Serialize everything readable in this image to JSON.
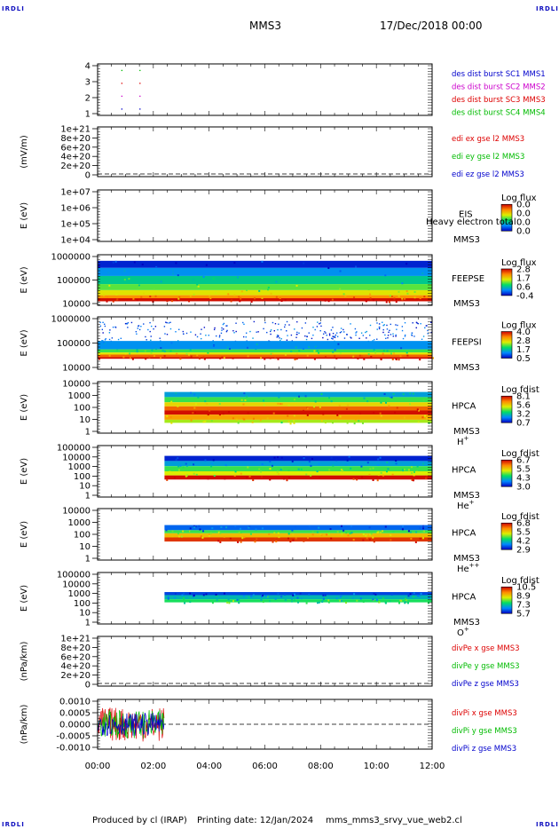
{
  "header": {
    "title": "MMS3",
    "date": "17/Dec/2018 00:00",
    "corner_logo": "IRDLI"
  },
  "footer": {
    "credit": "Produced by cl (IRAP)",
    "printing_date": "Printing date: 12/Jan/2024",
    "filename": "mms_mms3_srvy_vue_web2.cl"
  },
  "colors": {
    "mms1": "#0000cc",
    "mms2": "#cc00cc",
    "mms3": "#dd0000",
    "mms4": "#00bb00",
    "irap_blue": "#1010c0"
  },
  "chart_data": {
    "type": "multi-panel",
    "x": {
      "ticks": [
        "00:00",
        "02:00",
        "04:00",
        "06:00",
        "08:00",
        "10:00",
        "12:00"
      ],
      "range_hours": [
        0,
        12
      ]
    },
    "panels": [
      {
        "id": "burst",
        "type": "scatter",
        "ylabel": "",
        "yticks": [
          "4",
          "3",
          "2",
          "1"
        ],
        "ylim": [
          0.5,
          4.5
        ],
        "series": [
          {
            "name": "des dist burst SC1 MMS1",
            "color": "#0000cc",
            "y": 1
          },
          {
            "name": "des dist burst SC2 MMS2",
            "color": "#cc00cc",
            "y": 2
          },
          {
            "name": "des dist burst SC3 MMS3",
            "color": "#dd0000",
            "y": 3
          },
          {
            "name": "des dist burst SC4 MMS4",
            "color": "#00bb00",
            "y": 4
          }
        ],
        "points": [
          [
            0.85,
            1
          ],
          [
            0.85,
            2
          ],
          [
            0.85,
            3
          ],
          [
            0.85,
            4
          ],
          [
            1.5,
            1
          ],
          [
            1.5,
            2
          ],
          [
            1.5,
            3
          ],
          [
            1.5,
            4
          ]
        ]
      },
      {
        "id": "edi",
        "type": "line",
        "ylabel": "(mV/m)",
        "yticks": [
          "1e+21",
          "8e+20",
          "6e+20",
          "4e+20",
          "2e+20",
          "0"
        ],
        "ylim": [
          0,
          1e+21
        ],
        "series": [
          {
            "name": "edi ex gse l2 MMS3",
            "color": "#dd0000"
          },
          {
            "name": "edi ey gse l2 MMS3",
            "color": "#00bb00"
          },
          {
            "name": "edi ez gse l2 MMS3",
            "color": "#0000cc"
          }
        ],
        "zero_line": true
      },
      {
        "id": "eis",
        "type": "heatmap",
        "ylabel": "E (eV)",
        "yticks": [
          "1e+07",
          "1e+06",
          "1e+05",
          "1e+04"
        ],
        "ylim": [
          10000,
          10000000
        ],
        "log_y": true,
        "instrument": [
          "EIS",
          "MMS3"
        ],
        "overlay_text": "Heavy electron total",
        "colorbar": {
          "label": "Log flux",
          "ticks": [
            "0.0",
            "0.0",
            "0.0",
            "0.0"
          ]
        },
        "data_start": null
      },
      {
        "id": "feepse",
        "type": "heatmap",
        "ylabel": "E (eV)",
        "yticks": [
          "1000000",
          "100000",
          "10000"
        ],
        "ylim": [
          10000,
          1000000
        ],
        "log_y": true,
        "instrument": [
          "FEEPSE",
          "MMS3"
        ],
        "colorbar": {
          "label": "Log flux",
          "ticks": [
            "2.8",
            "1.7",
            "0.6",
            "-0.4"
          ]
        },
        "data_start": 0.0
      },
      {
        "id": "feepsi",
        "type": "heatmap",
        "ylabel": "E (eV)",
        "yticks": [
          "1000000",
          "100000",
          "10000"
        ],
        "ylim": [
          10000,
          1000000
        ],
        "log_y": true,
        "instrument": [
          "FEEPSI",
          "MMS3"
        ],
        "colorbar": {
          "label": "Log flux",
          "ticks": [
            "4.0",
            "2.8",
            "1.7",
            "0.5"
          ]
        },
        "data_start": 0.0
      },
      {
        "id": "hpca_h",
        "type": "heatmap",
        "ylabel": "E (eV)",
        "yticks": [
          "10000",
          "1000",
          "100",
          "10",
          "1"
        ],
        "ylim": [
          1,
          40000
        ],
        "log_y": true,
        "instrument": [
          "HPCA",
          "MMS3"
        ],
        "species": {
          "base": "H",
          "sup": "+"
        },
        "colorbar": {
          "label": "Log fdist",
          "ticks": [
            "8.1",
            "5.6",
            "3.2",
            "0.7"
          ]
        },
        "data_start": 2.4
      },
      {
        "id": "hpca_he",
        "type": "heatmap",
        "ylabel": "E (eV)",
        "yticks": [
          "100000",
          "10000",
          "1000",
          "100",
          "10",
          "1"
        ],
        "ylim": [
          1,
          100000
        ],
        "log_y": true,
        "instrument": [
          "HPCA",
          "MMS3"
        ],
        "species": {
          "base": "He",
          "sup": "+"
        },
        "colorbar": {
          "label": "Log fdist",
          "ticks": [
            "6.7",
            "5.5",
            "4.3",
            "3.0"
          ]
        },
        "data_start": 2.4
      },
      {
        "id": "hpca_hepp",
        "type": "heatmap",
        "ylabel": "E (eV)",
        "yticks": [
          "10000",
          "1000",
          "100",
          "10",
          "1"
        ],
        "ylim": [
          1,
          10000
        ],
        "log_y": true,
        "instrument": [
          "HPCA",
          "MMS3"
        ],
        "species": {
          "base": "He",
          "sup": "++"
        },
        "colorbar": {
          "label": "Log fdist",
          "ticks": [
            "6.8",
            "5.5",
            "4.2",
            "2.9"
          ]
        },
        "data_start": 2.4
      },
      {
        "id": "hpca_o",
        "type": "heatmap",
        "ylabel": "E (eV)",
        "yticks": [
          "100000",
          "10000",
          "1000",
          "100",
          "10",
          "1"
        ],
        "ylim": [
          1,
          100000
        ],
        "log_y": true,
        "instrument": [
          "HPCA",
          "MMS3"
        ],
        "species": {
          "base": "O",
          "sup": "+"
        },
        "colorbar": {
          "label": "Log fdist",
          "ticks": [
            "10.5",
            "8.9",
            "7.3",
            "5.7"
          ]
        },
        "data_start": 2.4
      },
      {
        "id": "divpe",
        "type": "line",
        "ylabel": "(nPa/km)",
        "yticks": [
          "1e+21",
          "8e+20",
          "6e+20",
          "4e+20",
          "2e+20",
          "0"
        ],
        "ylim": [
          0,
          1e+21
        ],
        "series": [
          {
            "name": "divPe x gse MMS3",
            "color": "#dd0000"
          },
          {
            "name": "divPe y gse MMS3",
            "color": "#00bb00"
          },
          {
            "name": "divPe z gse MMS3",
            "color": "#0000cc"
          }
        ],
        "zero_line": true
      },
      {
        "id": "divpi",
        "type": "line",
        "ylabel": "(nPa/km)",
        "yticks": [
          "0.0010",
          "0.0005",
          "0.0000",
          "-0.0005",
          "-0.0010"
        ],
        "ylim": [
          -0.0013,
          0.0013
        ],
        "series": [
          {
            "name": "divPi x gse MMS3",
            "color": "#dd0000"
          },
          {
            "name": "divPi y gse MMS3",
            "color": "#00bb00"
          },
          {
            "name": "divPi z gse MMS3",
            "color": "#0000cc"
          }
        ],
        "zero_line": true,
        "data_range_hours": [
          0,
          2.4
        ]
      }
    ]
  }
}
